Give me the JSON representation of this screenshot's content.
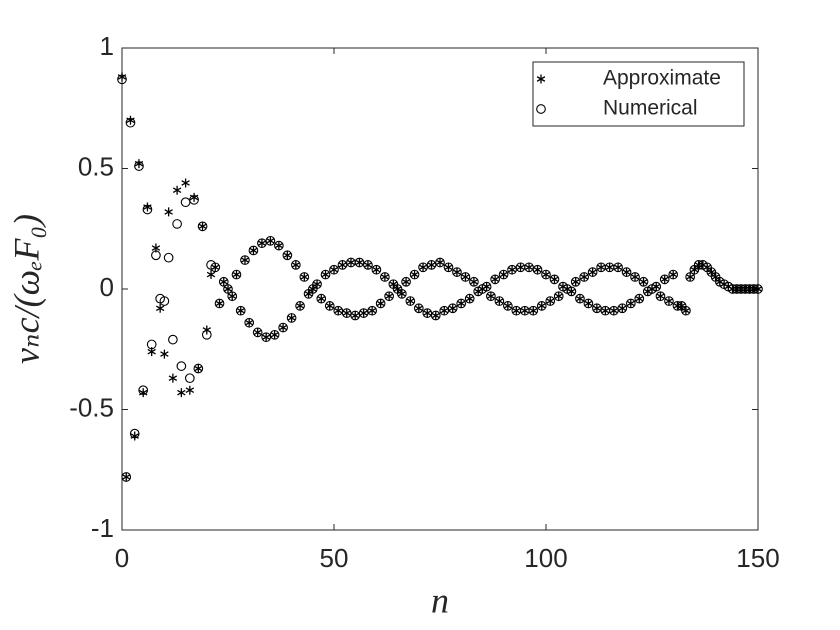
{
  "chart_data": {
    "type": "scatter",
    "xlabel": "n",
    "ylabel": "vₙc/(ωₑF₀)",
    "x": [
      0,
      1,
      2,
      3,
      4,
      5,
      6,
      7,
      8,
      9,
      10,
      11,
      12,
      13,
      14,
      15,
      16,
      17,
      18,
      19,
      20,
      21,
      22,
      23,
      24,
      25,
      26,
      27,
      28,
      29,
      30,
      31,
      32,
      33,
      34,
      35,
      36,
      37,
      38,
      39,
      40,
      41,
      42,
      43,
      44,
      45,
      46,
      47,
      48,
      49,
      50,
      51,
      52,
      53,
      54,
      55,
      56,
      57,
      58,
      59,
      60,
      61,
      62,
      63,
      64,
      65,
      66,
      67,
      68,
      69,
      70,
      71,
      72,
      73,
      74,
      75,
      76,
      77,
      78,
      79,
      80,
      81,
      82,
      83,
      84,
      85,
      86,
      87,
      88,
      89,
      90,
      91,
      92,
      93,
      94,
      95,
      96,
      97,
      98,
      99,
      100,
      101,
      102,
      103,
      104,
      105,
      106,
      107,
      108,
      109,
      110,
      111,
      112,
      113,
      114,
      115,
      116,
      117,
      118,
      119,
      120,
      121,
      122,
      123,
      124,
      125,
      126,
      127,
      128,
      129,
      130,
      131,
      132,
      133,
      134,
      135,
      136,
      137,
      138,
      139,
      140,
      141,
      142,
      143,
      144,
      145,
      146,
      147,
      148,
      149,
      150
    ],
    "series": [
      {
        "name": "Approximate",
        "marker": "asterisk",
        "color": "#000000",
        "values": [
          0.88,
          -0.78,
          0.7,
          -0.61,
          0.52,
          -0.43,
          0.34,
          -0.26,
          0.17,
          -0.08,
          -0.27,
          0.32,
          -0.37,
          0.41,
          -0.43,
          0.44,
          -0.42,
          0.38,
          -0.33,
          0.26,
          -0.17,
          0.06,
          0.09,
          -0.06,
          0.03,
          0,
          -0.03,
          0.06,
          -0.09,
          0.12,
          -0.14,
          0.16,
          -0.18,
          0.19,
          -0.2,
          0.2,
          -0.19,
          0.18,
          -0.16,
          0.14,
          -0.12,
          0.1,
          -0.07,
          0.05,
          -0.02,
          0,
          0.02,
          -0.04,
          0.06,
          -0.07,
          0.08,
          -0.09,
          0.1,
          -0.1,
          0.11,
          -0.11,
          0.11,
          -0.1,
          0.1,
          -0.09,
          0.08,
          -0.06,
          0.05,
          -0.03,
          0.02,
          0,
          -0.02,
          0.03,
          -0.05,
          0.06,
          -0.08,
          0.09,
          -0.1,
          0.1,
          -0.11,
          0.11,
          -0.09,
          0.09,
          -0.08,
          0.07,
          -0.06,
          0.05,
          -0.04,
          0.03,
          -0.01,
          0,
          0.01,
          -0.03,
          0.04,
          -0.05,
          0.06,
          -0.07,
          0.08,
          -0.09,
          0.09,
          -0.09,
          0.09,
          -0.09,
          0.08,
          -0.07,
          0.06,
          -0.05,
          0.04,
          -0.03,
          0.01,
          0,
          -0.01,
          0.03,
          -0.04,
          0.05,
          -0.06,
          0.07,
          -0.08,
          0.09,
          -0.09,
          0.09,
          -0.09,
          0.09,
          -0.08,
          0.07,
          -0.06,
          0.05,
          -0.04,
          0.03,
          -0.01,
          0,
          0.01,
          -0.03,
          0.04,
          -0.05,
          0.06,
          -0.07,
          -0.07,
          -0.09,
          0.05,
          0.08,
          0.1,
          0.1,
          0.09,
          0.07,
          0.05,
          0.03,
          0.02,
          0.01,
          0,
          0,
          0,
          0,
          0,
          0,
          0
        ]
      },
      {
        "name": "Numerical",
        "marker": "circle",
        "color": "#000000",
        "values": [
          0.87,
          -0.78,
          0.69,
          -0.6,
          0.51,
          -0.42,
          0.33,
          -0.23,
          0.14,
          -0.04,
          -0.05,
          0.13,
          -0.21,
          0.27,
          -0.32,
          0.36,
          -0.37,
          0.37,
          -0.33,
          0.26,
          -0.19,
          0.1,
          0.09,
          -0.06,
          0.03,
          0,
          -0.03,
          0.06,
          -0.09,
          0.12,
          -0.14,
          0.16,
          -0.18,
          0.19,
          -0.2,
          0.2,
          -0.19,
          0.18,
          -0.16,
          0.14,
          -0.12,
          0.1,
          -0.07,
          0.05,
          -0.02,
          0,
          0.02,
          -0.04,
          0.06,
          -0.07,
          0.08,
          -0.09,
          0.1,
          -0.1,
          0.11,
          -0.11,
          0.11,
          -0.1,
          0.1,
          -0.09,
          0.08,
          -0.06,
          0.05,
          -0.03,
          0.02,
          0,
          -0.02,
          0.03,
          -0.05,
          0.06,
          -0.08,
          0.09,
          -0.1,
          0.1,
          -0.11,
          0.11,
          -0.09,
          0.09,
          -0.08,
          0.07,
          -0.06,
          0.05,
          -0.04,
          0.03,
          -0.01,
          0,
          0.01,
          -0.03,
          0.04,
          -0.05,
          0.06,
          -0.07,
          0.08,
          -0.09,
          0.09,
          -0.09,
          0.09,
          -0.09,
          0.08,
          -0.07,
          0.06,
          -0.05,
          0.04,
          -0.03,
          0.01,
          0,
          -0.01,
          0.03,
          -0.04,
          0.05,
          -0.06,
          0.07,
          -0.08,
          0.09,
          -0.09,
          0.09,
          -0.09,
          0.09,
          -0.08,
          0.07,
          -0.06,
          0.05,
          -0.04,
          0.03,
          -0.01,
          0,
          0.01,
          -0.03,
          0.04,
          -0.05,
          0.06,
          -0.07,
          -0.07,
          -0.09,
          0.05,
          0.08,
          0.1,
          0.1,
          0.09,
          0.07,
          0.05,
          0.03,
          0.02,
          0.01,
          0,
          0,
          0,
          0,
          0,
          0,
          0
        ]
      }
    ],
    "xlim": [
      0,
      150
    ],
    "xticks": [
      0,
      50,
      100,
      150
    ],
    "ylim": [
      -1,
      1
    ],
    "yticks": [
      -1,
      -0.5,
      0,
      0.5,
      1
    ],
    "grid": false,
    "legend": "upper right"
  }
}
